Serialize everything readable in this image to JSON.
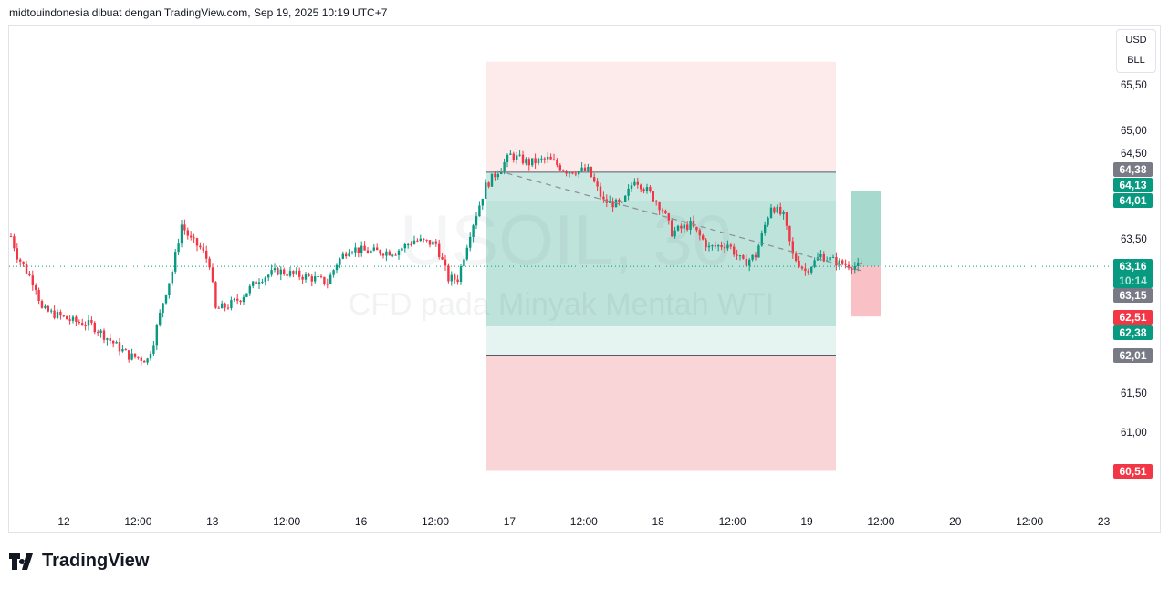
{
  "header": {
    "text": "midtouindonesia dibuat dengan TradingView.com, Sep 19, 2025 10:19 UTC+7"
  },
  "watermark": {
    "symbol": "USOIL, 30",
    "description": "CFD pada Minyak Mentah WTI"
  },
  "currency": {
    "line1": "USD",
    "line2": "BLL"
  },
  "y_axis_labels": [
    "65,50",
    "65,00",
    "64,50",
    "63,50",
    "61,50",
    "61,00"
  ],
  "price_badges": [
    {
      "label": "64,38",
      "color": "#787b86"
    },
    {
      "label": "64,13",
      "color": "#089981"
    },
    {
      "label": "64,01",
      "color": "#089981"
    },
    {
      "label": "63,16",
      "sub": "10:14",
      "color": "#089981"
    },
    {
      "label": "63,15",
      "color": "#787b86"
    },
    {
      "label": "62,51",
      "color": "#f23645"
    },
    {
      "label": "62,38",
      "color": "#089981"
    },
    {
      "label": "62,01",
      "color": "#787b86"
    },
    {
      "label": "60,51",
      "color": "#f23645"
    }
  ],
  "x_axis_labels": [
    "12",
    "12:00",
    "13",
    "12:00",
    "16",
    "12:00",
    "17",
    "12:00",
    "18",
    "12:00",
    "19",
    "12:00",
    "20",
    "12:00",
    "23"
  ],
  "logo": {
    "text": "TradingView"
  },
  "colors": {
    "up": "#089981",
    "down": "#f23645"
  },
  "chart_data": {
    "type": "candlestick",
    "interval": "30m",
    "ylim": [
      60.2,
      65.8
    ],
    "price_path": [
      [
        0,
        63.55
      ],
      [
        2,
        63.3
      ],
      [
        8,
        62.9
      ],
      [
        10,
        62.6
      ],
      [
        20,
        62.45
      ],
      [
        26,
        62.4
      ],
      [
        32,
        62.2
      ],
      [
        38,
        62.0
      ],
      [
        44,
        61.95
      ],
      [
        46,
        62.2
      ],
      [
        49,
        62.7
      ],
      [
        52,
        63.1
      ],
      [
        55,
        63.7
      ],
      [
        58,
        63.5
      ],
      [
        61,
        63.4
      ],
      [
        64,
        63.2
      ],
      [
        66,
        62.6
      ],
      [
        70,
        62.65
      ],
      [
        74,
        62.75
      ],
      [
        80,
        63.0
      ],
      [
        86,
        63.1
      ],
      [
        92,
        63.05
      ],
      [
        98,
        63.0
      ],
      [
        102,
        62.95
      ],
      [
        105,
        63.2
      ],
      [
        109,
        63.4
      ],
      [
        115,
        63.35
      ],
      [
        124,
        63.35
      ],
      [
        130,
        63.5
      ],
      [
        137,
        63.45
      ],
      [
        141,
        63.0
      ],
      [
        144,
        63.0
      ],
      [
        148,
        63.6
      ],
      [
        153,
        64.2
      ],
      [
        157,
        64.4
      ],
      [
        161,
        64.6
      ],
      [
        167,
        64.5
      ],
      [
        173,
        64.55
      ],
      [
        179,
        64.4
      ],
      [
        186,
        64.4
      ],
      [
        191,
        64.0
      ],
      [
        197,
        63.95
      ],
      [
        201,
        64.3
      ],
      [
        206,
        64.1
      ],
      [
        210,
        63.9
      ],
      [
        213,
        63.6
      ],
      [
        219,
        63.7
      ],
      [
        225,
        63.4
      ],
      [
        231,
        63.45
      ],
      [
        236,
        63.2
      ],
      [
        240,
        63.3
      ],
      [
        245,
        63.95
      ],
      [
        249,
        63.8
      ],
      [
        252,
        63.3
      ],
      [
        256,
        63.1
      ],
      [
        261,
        63.3
      ],
      [
        267,
        63.2
      ],
      [
        274,
        63.15
      ]
    ],
    "position": {
      "stop": 65.81,
      "entry": 64.38,
      "target1": 64.01,
      "target2": 62.38,
      "target3": 62.01,
      "target4": 60.51
    },
    "small_position": {
      "entry": 63.16,
      "target": 64.13,
      "stop": 62.51
    },
    "last_price": 63.16
  }
}
